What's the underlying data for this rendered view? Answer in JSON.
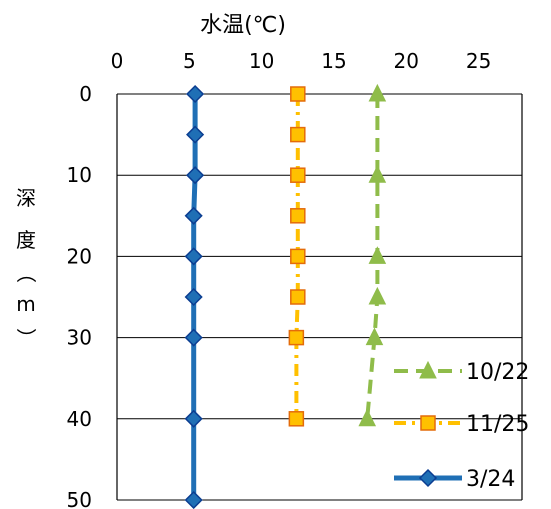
{
  "chart_data": {
    "type": "line",
    "title": "水温(℃)",
    "ylabel": "深度（m）",
    "xlim": [
      0,
      28
    ],
    "ylim": [
      0,
      50
    ],
    "y_inverted": true,
    "x_axis_position": "top",
    "xticks": [
      0,
      5,
      10,
      15,
      20,
      25
    ],
    "yticks": [
      0,
      10,
      20,
      30,
      40,
      50
    ],
    "grid": "horizontal",
    "legend_position": "bottom-right",
    "series": [
      {
        "name": "10/22",
        "color": "#8fbc4a",
        "line_style": "dashed",
        "marker": "triangle",
        "points": [
          [
            18.0,
            0
          ],
          [
            18.0,
            10
          ],
          [
            18.0,
            20
          ],
          [
            18.0,
            25
          ],
          [
            17.8,
            30
          ],
          [
            17.3,
            40
          ]
        ]
      },
      {
        "name": "11/25",
        "color": "#ffc000",
        "marker_border": "#e46c0a",
        "line_style": "dash-dot",
        "marker": "square",
        "points": [
          [
            12.5,
            0
          ],
          [
            12.5,
            5
          ],
          [
            12.5,
            10
          ],
          [
            12.5,
            15
          ],
          [
            12.5,
            20
          ],
          [
            12.5,
            25
          ],
          [
            12.4,
            30
          ],
          [
            12.4,
            40
          ]
        ]
      },
      {
        "name": "3/24",
        "color": "#1f6fb5",
        "marker_border": "#0b3d91",
        "line_style": "solid",
        "marker": "diamond",
        "points": [
          [
            5.4,
            0
          ],
          [
            5.4,
            5
          ],
          [
            5.4,
            10
          ],
          [
            5.3,
            15
          ],
          [
            5.3,
            20
          ],
          [
            5.3,
            25
          ],
          [
            5.3,
            30
          ],
          [
            5.3,
            40
          ],
          [
            5.3,
            50
          ]
        ]
      }
    ]
  }
}
